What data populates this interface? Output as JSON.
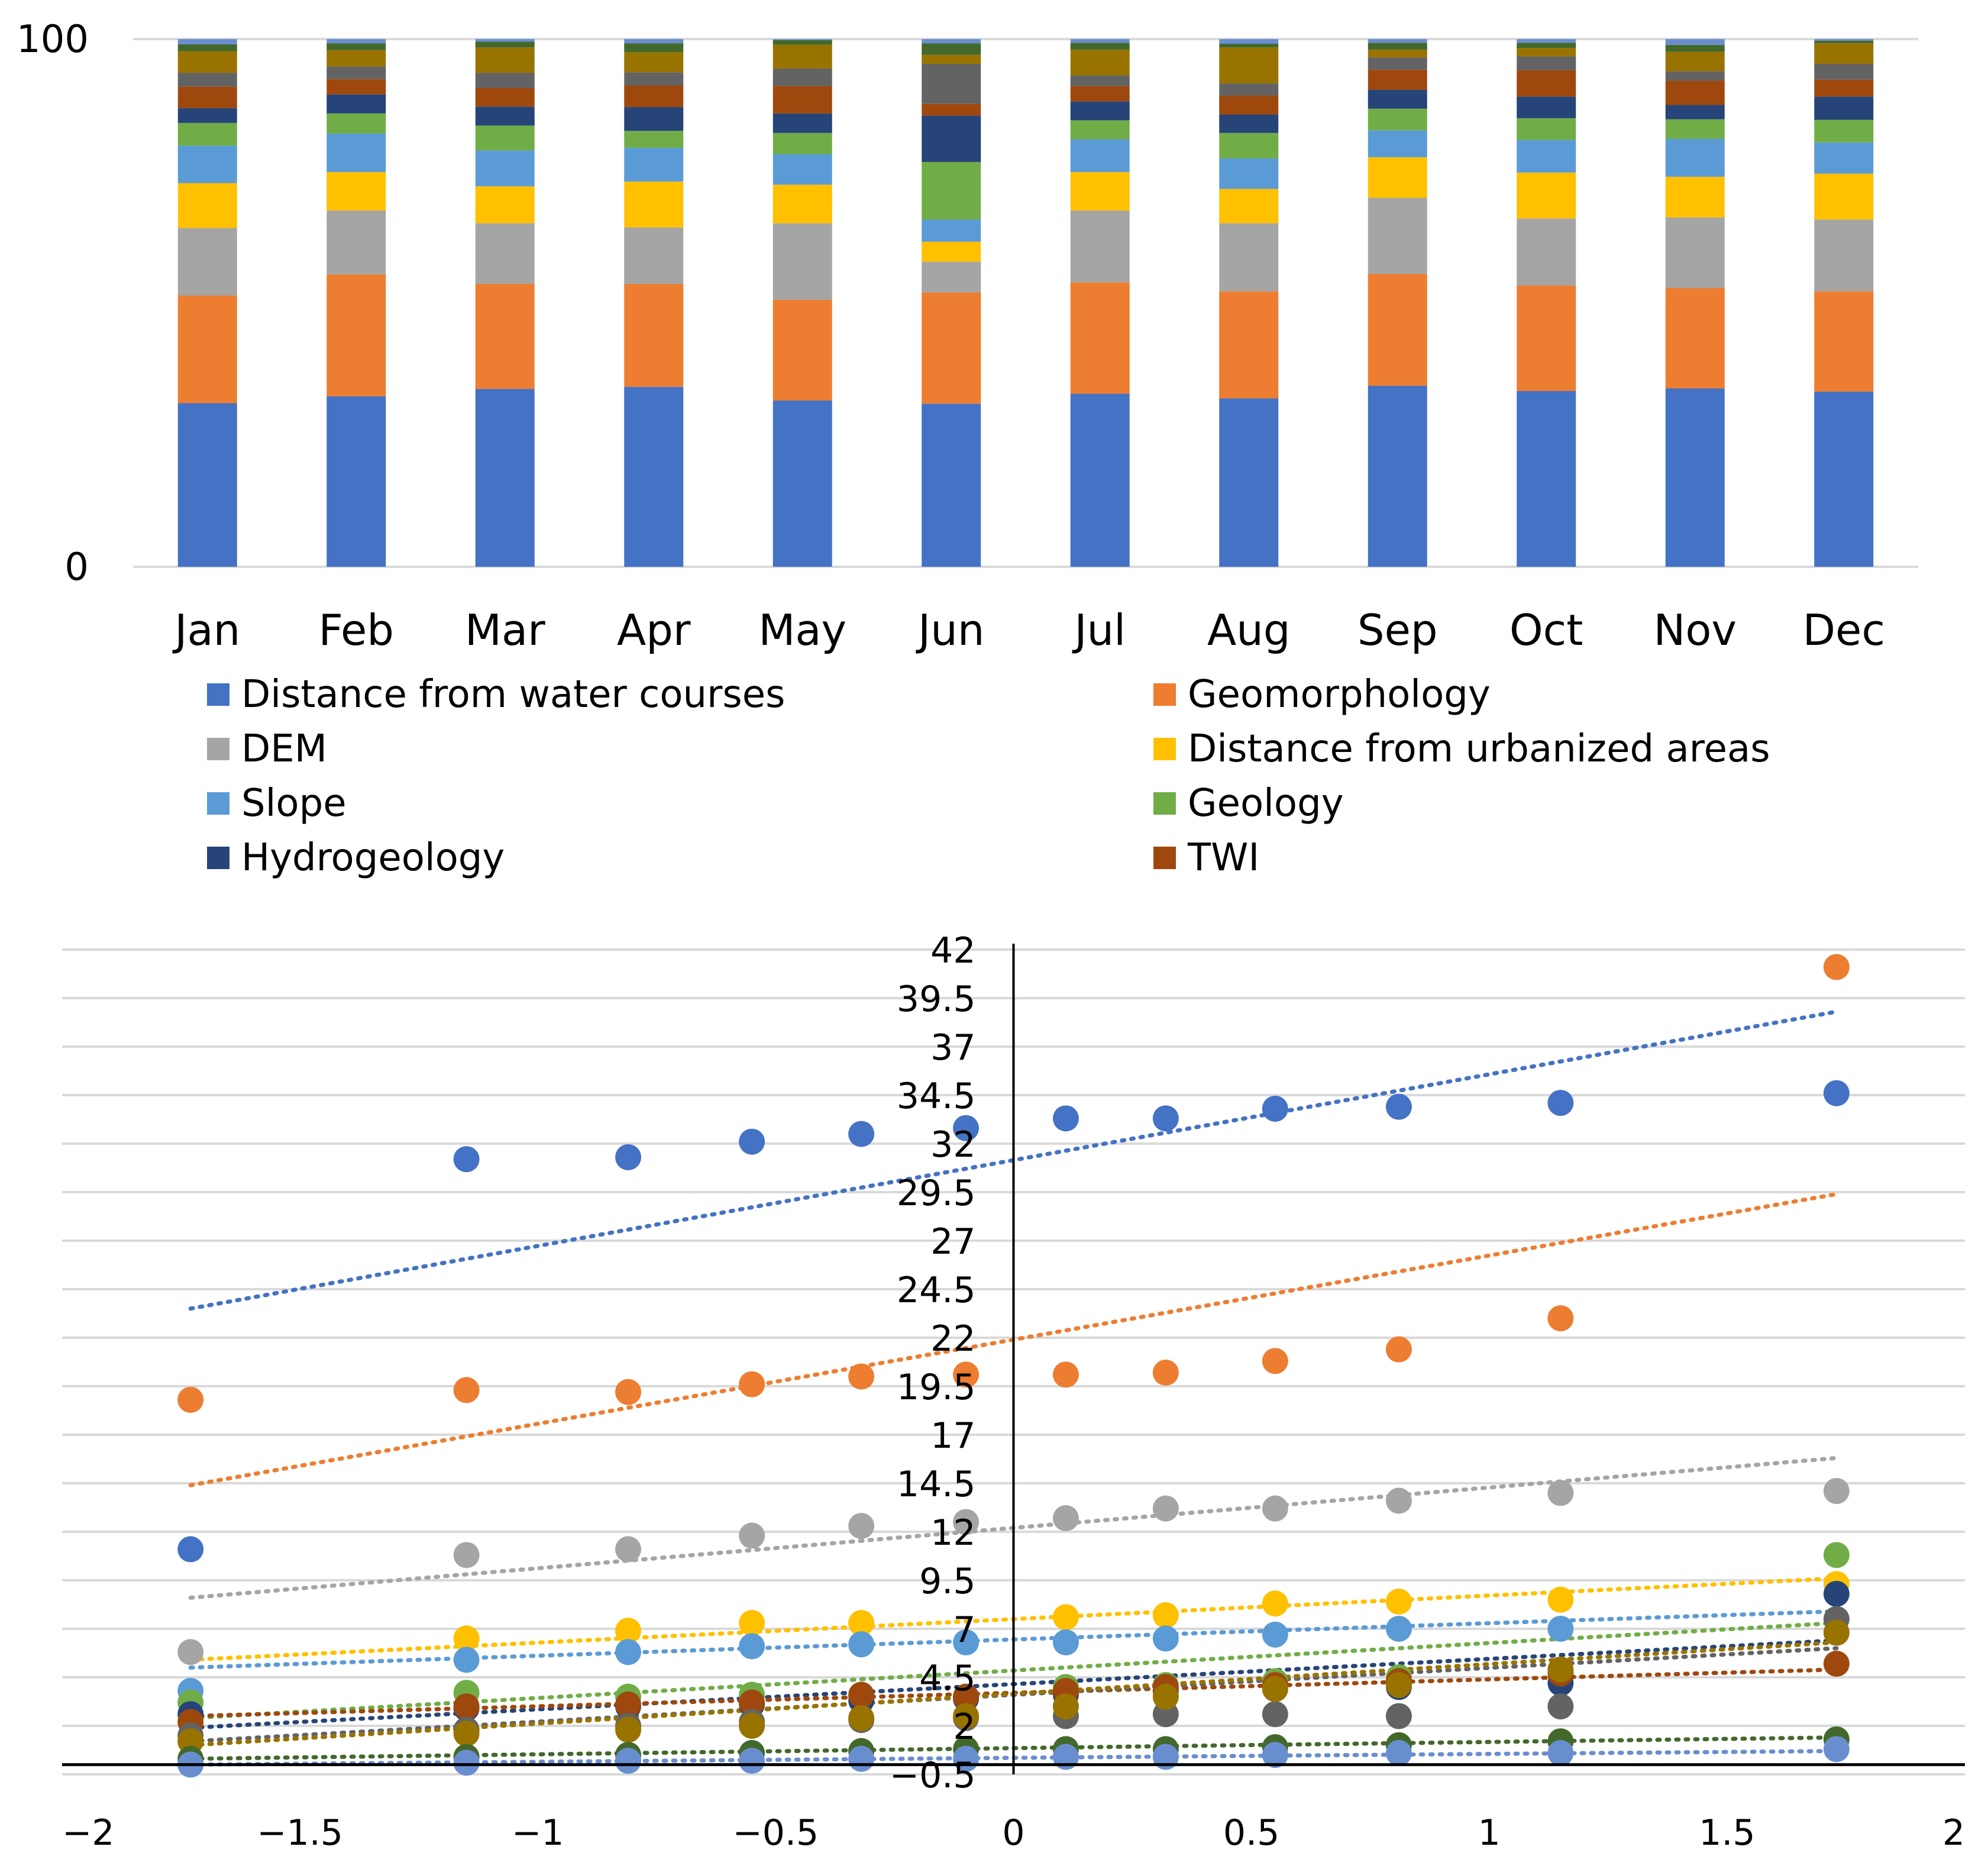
{
  "chart_data": [
    {
      "type": "bar",
      "stacked": true,
      "title": "",
      "xlabel": "",
      "ylabel": "",
      "ylim": [
        0,
        100
      ],
      "ytick_labels": [
        "0",
        "100"
      ],
      "categories": [
        "Jan",
        "Feb",
        "Mar",
        "Apr",
        "May",
        "Jun",
        "Jul",
        "Aug",
        "Sep",
        "Oct",
        "Nov",
        "Dec"
      ],
      "legend_position": "bottom",
      "series": [
        {
          "name": "Distance from water courses",
          "color": "#4472C4",
          "values": [
            31,
            32.3,
            33.7,
            34.1,
            31.5,
            30.9,
            32.8,
            31.9,
            34.3,
            33.3,
            33.8,
            33.2
          ]
        },
        {
          "name": "Geomorphology",
          "color": "#ED7D31",
          "values": [
            20.4,
            23.1,
            19.9,
            19.5,
            19.1,
            21.1,
            21.1,
            20.3,
            21.2,
            20,
            19,
            19
          ]
        },
        {
          "name": "DEM",
          "color": "#A5A5A5",
          "values": [
            12.8,
            12.1,
            11.5,
            10.7,
            14.5,
            5.8,
            13.6,
            12.9,
            14.4,
            12.7,
            13.4,
            13.6
          ]
        },
        {
          "name": "Distance from urbanized areas",
          "color": "#FFC000",
          "values": [
            8.5,
            7.3,
            7,
            8.7,
            7.3,
            3.8,
            7.3,
            6.5,
            7.7,
            8.7,
            7.7,
            8.7
          ]
        },
        {
          "name": "Slope",
          "color": "#5B9BD5",
          "values": [
            7.1,
            7.3,
            6.8,
            6.4,
            5.8,
            4.2,
            6.2,
            5.8,
            5.1,
            6.2,
            7.2,
            5.9
          ]
        },
        {
          "name": "Geology",
          "color": "#70AD47",
          "values": [
            4.3,
            3.8,
            4.7,
            3.2,
            4,
            10.9,
            3.6,
            4.8,
            4.1,
            4.1,
            3.7,
            4.3
          ]
        },
        {
          "name": "Hydrogeology",
          "color": "#264478",
          "values": [
            2.8,
            3.6,
            3.6,
            4.5,
            3.7,
            8.8,
            3.6,
            3.5,
            3.6,
            4.1,
            2.7,
            4.4
          ]
        },
        {
          "name": "TWI",
          "color": "#9E480E",
          "values": [
            4.1,
            2.9,
            3.5,
            4.1,
            5.2,
            2.2,
            2.9,
            3.6,
            3.8,
            5,
            4.6,
            3.2
          ]
        },
        {
          "name": "",
          "color": "#636363",
          "values": [
            2.6,
            2.4,
            2.9,
            2.5,
            3.3,
            7.6,
            2,
            2.3,
            2.3,
            2.6,
            1.8,
            3
          ]
        },
        {
          "name": "",
          "color": "#997300",
          "values": [
            4.1,
            3.1,
            4.8,
            3.8,
            4.5,
            1.7,
            4.9,
            6.8,
            1.5,
            1.6,
            3.7,
            3.9
          ]
        },
        {
          "name": "",
          "color": "#43682B",
          "values": [
            1.3,
            1.3,
            1.1,
            1.7,
            0.9,
            2.2,
            1.3,
            0.7,
            1.3,
            1,
            1.3,
            0.5
          ]
        },
        {
          "name": "",
          "color": "#698ED0",
          "values": [
            1,
            0.8,
            0.5,
            0.8,
            0.2,
            0.8,
            0.7,
            0.9,
            0.7,
            0.7,
            1.1,
            0.3
          ]
        }
      ]
    },
    {
      "type": "scatter",
      "title": "",
      "xlabel": "",
      "ylabel": "",
      "xlim": [
        -2,
        2
      ],
      "ylim": [
        -0.5,
        42
      ],
      "xtick_labels": [
        "−2",
        "−1.5",
        "−1",
        "−0.5",
        "0",
        "0.5",
        "1",
        "1.5",
        "2"
      ],
      "ytick_labels": [
        "−0.5",
        "2",
        "4.5",
        "7",
        "9.5",
        "12",
        "14.5",
        "17",
        "19.5",
        "22",
        "24.5",
        "27",
        "29.5",
        "32",
        "34.5",
        "37",
        "39.5",
        "42"
      ],
      "x": [
        -1.73,
        -1.15,
        -0.81,
        -0.55,
        -0.32,
        -0.1,
        0.11,
        0.32,
        0.55,
        0.81,
        1.15,
        1.73
      ],
      "trendlines": true,
      "series": [
        {
          "color": "#4472C4",
          "values": [
            11.1,
            31.2,
            31.3,
            32.1,
            32.5,
            32.8,
            33.3,
            33.3,
            33.8,
            33.9,
            34.1,
            34.6
          ],
          "trend": [
            23.5,
            38.8
          ]
        },
        {
          "color": "#ED7D31",
          "values": [
            18.8,
            19.3,
            19.2,
            19.6,
            20,
            20.1,
            20.1,
            20.2,
            20.8,
            21.4,
            23,
            41.1
          ],
          "trend": [
            14.4,
            29.4
          ]
        },
        {
          "color": "#A5A5A5",
          "values": [
            5.8,
            10.8,
            11.1,
            11.8,
            12.3,
            12.5,
            12.7,
            13.2,
            13.2,
            13.6,
            14,
            14.1
          ],
          "trend": [
            8.6,
            15.8
          ]
        },
        {
          "color": "#FFC000",
          "values": [
            null,
            6.5,
            6.9,
            7.3,
            7.3,
            null,
            7.6,
            7.7,
            8.3,
            8.4,
            8.5,
            9.3
          ],
          "trend": [
            5.4,
            9.6
          ]
        },
        {
          "color": "#5B9BD5",
          "values": [
            3.8,
            5.4,
            5.8,
            6.1,
            6.2,
            6.3,
            6.3,
            6.5,
            6.7,
            7,
            7,
            6.8
          ],
          "trend": [
            5,
            7.9
          ]
        },
        {
          "color": "#70AD47",
          "values": [
            3.2,
            3.7,
            3.5,
            3.6,
            3.5,
            3.5,
            4,
            4.1,
            4.3,
            4.5,
            4.8,
            10.8
          ],
          "trend": [
            2.4,
            7.3
          ]
        },
        {
          "color": "#264478",
          "values": [
            2.6,
            2.9,
            3,
            3.1,
            3.3,
            3.4,
            3.6,
            3.8,
            3.9,
            4,
            4.2,
            8.8
          ],
          "trend": [
            1.9,
            6.4
          ]
        },
        {
          "color": "#9E480E",
          "values": [
            2.2,
            3,
            3.1,
            3.2,
            3.6,
            3.5,
            3.8,
            4,
            4.1,
            4.3,
            4.7,
            5.2
          ],
          "trend": [
            2.5,
            4.9
          ]
        },
        {
          "color": "#636363",
          "values": [
            1.5,
            1.8,
            2,
            2.2,
            2.3,
            2.4,
            2.5,
            2.6,
            2.6,
            2.5,
            3,
            7.5
          ],
          "trend": [
            1.2,
            6
          ]
        },
        {
          "color": "#997300",
          "values": [
            1.2,
            1.6,
            1.8,
            2,
            2.4,
            2.5,
            3,
            3.5,
            3.9,
            4.1,
            4.9,
            6.8
          ],
          "trend": [
            1,
            6.3
          ]
        },
        {
          "color": "#43682B",
          "values": [
            0.3,
            0.4,
            0.5,
            0.6,
            0.7,
            0.8,
            0.8,
            0.8,
            0.9,
            1,
            1.2,
            1.3
          ],
          "trend": [
            0.3,
            1.4
          ]
        },
        {
          "color": "#698ED0",
          "values": [
            0,
            0.1,
            0.2,
            0.2,
            0.3,
            0.3,
            0.4,
            0.4,
            0.5,
            0.6,
            0.6,
            0.8
          ],
          "trend": [
            0,
            0.7
          ]
        }
      ]
    }
  ]
}
